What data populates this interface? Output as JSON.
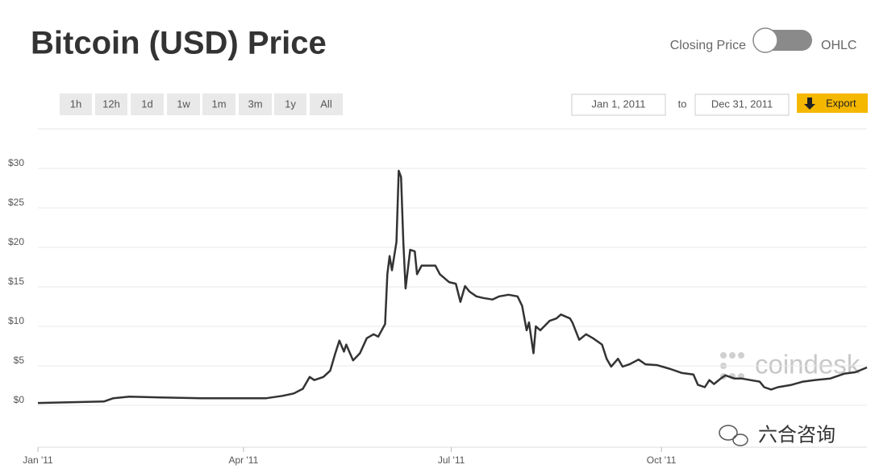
{
  "header": {
    "title": "Bitcoin (USD) Price",
    "toggle_left": "Closing Price",
    "toggle_right": "OHLC"
  },
  "controls": {
    "ranges": [
      "1h",
      "12h",
      "1d",
      "1w",
      "1m",
      "3m",
      "1y",
      "All"
    ],
    "date_from": "Jan 1, 2011",
    "date_sep": "to",
    "date_to": "Dec 31, 2011",
    "export": "Export"
  },
  "watermarks": {
    "brand": "coindesk",
    "wechat": "六合咨询"
  },
  "chart_data": {
    "type": "line",
    "color": "#333333",
    "grid": true,
    "x": [
      0,
      29,
      33,
      40,
      54,
      72,
      89,
      100,
      107,
      112,
      116,
      119,
      121,
      125,
      128,
      130,
      132,
      134,
      135,
      138,
      141,
      144,
      147,
      149,
      152,
      153,
      154,
      155,
      157,
      158,
      159,
      160,
      161,
      163,
      165,
      166,
      168,
      174,
      176,
      180,
      183,
      185,
      187,
      189,
      192,
      195,
      199,
      202,
      206,
      210,
      212,
      214,
      215,
      217,
      218,
      220,
      224,
      227,
      229,
      233,
      234,
      237,
      240,
      243,
      247,
      249,
      251,
      254,
      256,
      259,
      263,
      266,
      271,
      277,
      282,
      287,
      289,
      292,
      294,
      296,
      299,
      301,
      305,
      308,
      312,
      316,
      318,
      321,
      324,
      330,
      335,
      340,
      347,
      353,
      358,
      363
    ],
    "values": [
      0.3,
      0.5,
      0.9,
      1.1,
      1.0,
      0.9,
      0.9,
      0.9,
      1.2,
      1.5,
      2.1,
      3.6,
      3.2,
      3.6,
      4.4,
      6.4,
      8.2,
      6.8,
      7.7,
      5.7,
      6.6,
      8.5,
      9.0,
      8.7,
      10.3,
      16.6,
      18.9,
      17.1,
      20.7,
      29.7,
      28.9,
      20.7,
      14.8,
      19.7,
      19.5,
      16.6,
      17.7,
      17.7,
      16.6,
      15.6,
      15.4,
      13.1,
      15.1,
      14.4,
      13.8,
      13.6,
      13.4,
      13.8,
      14.0,
      13.8,
      12.6,
      9.5,
      10.5,
      6.6,
      10.0,
      9.5,
      10.7,
      11.0,
      11.5,
      11.0,
      10.5,
      8.3,
      9.0,
      8.5,
      7.7,
      5.9,
      4.9,
      5.9,
      4.9,
      5.2,
      5.8,
      5.2,
      5.1,
      4.6,
      4.1,
      3.9,
      2.6,
      2.3,
      3.2,
      2.7,
      3.4,
      3.8,
      3.4,
      3.4,
      3.2,
      3.0,
      2.3,
      2.0,
      2.3,
      2.6,
      3.0,
      3.2,
      3.4,
      4.0,
      4.2,
      4.8
    ],
    "xlim": [
      0,
      363
    ],
    "xticks": [
      {
        "value": 0,
        "label": "Jan '11"
      },
      {
        "value": 90,
        "label": "Apr '11"
      },
      {
        "value": 181,
        "label": "Jul '11"
      },
      {
        "value": 273,
        "label": "Oct '11"
      }
    ],
    "ylim": [
      -5.3,
      35
    ],
    "yticks": [
      {
        "value": 0,
        "label": "$0"
      },
      {
        "value": 5,
        "label": "$5"
      },
      {
        "value": 10,
        "label": "$10"
      },
      {
        "value": 15,
        "label": "$15"
      },
      {
        "value": 20,
        "label": "$20"
      },
      {
        "value": 25,
        "label": "$25"
      },
      {
        "value": 30,
        "label": "$30"
      }
    ]
  }
}
